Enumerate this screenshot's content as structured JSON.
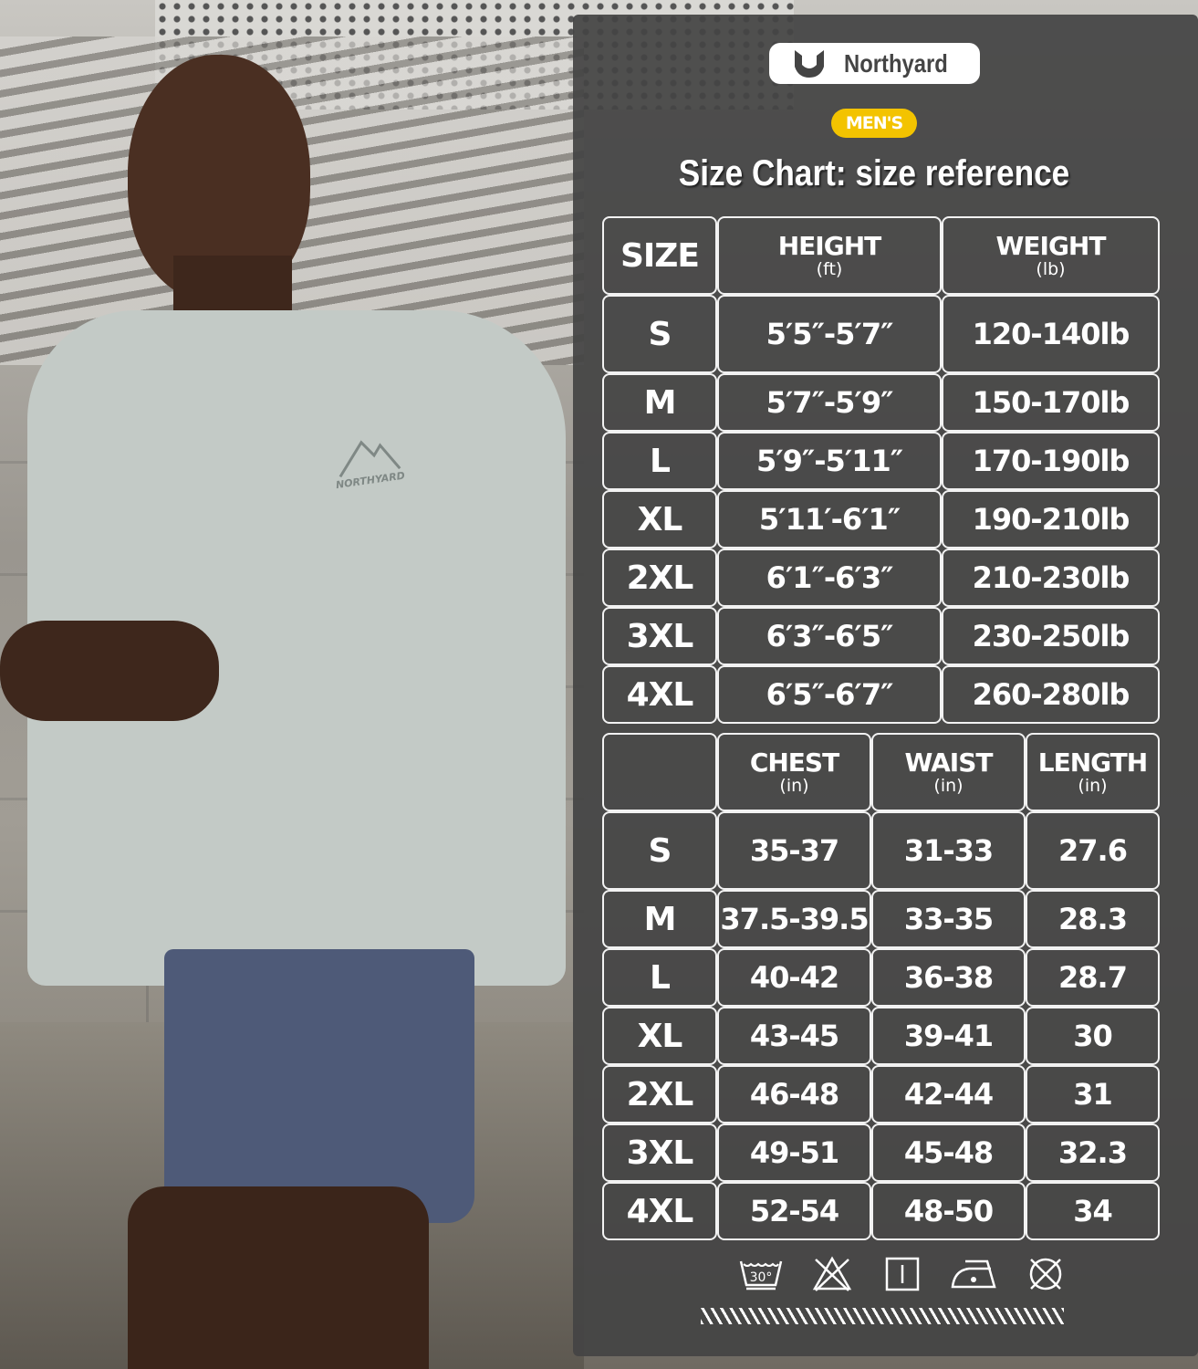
{
  "brand": {
    "name": "Northyard",
    "shirt_logo": "NORTHYARD"
  },
  "badge": "MEN'S",
  "title": "Size Chart: size reference",
  "body_table": {
    "headers": [
      {
        "label": "SIZE",
        "unit": ""
      },
      {
        "label": "HEIGHT",
        "unit": "(ft)"
      },
      {
        "label": "WEIGHT",
        "unit": "(lb)"
      }
    ],
    "rows": [
      [
        "S",
        "5′5″-5′7″",
        "120-140lb"
      ],
      [
        "M",
        "5′7″-5′9″",
        "150-170lb"
      ],
      [
        "L",
        "5′9″-5′11″",
        "170-190lb"
      ],
      [
        "XL",
        "5′11′-6′1″",
        "190-210lb"
      ],
      [
        "2XL",
        "6′1″-6′3″",
        "210-230lb"
      ],
      [
        "3XL",
        "6′3″-6′5″",
        "230-250lb"
      ],
      [
        "4XL",
        "6′5″-6′7″",
        "260-280lb"
      ]
    ]
  },
  "garment_table": {
    "headers": [
      {
        "label": "",
        "unit": ""
      },
      {
        "label": "CHEST",
        "unit": "(in)"
      },
      {
        "label": "WAIST",
        "unit": "(in)"
      },
      {
        "label": "LENGTH",
        "unit": "(in)"
      }
    ],
    "rows": [
      [
        "S",
        "35-37",
        "31-33",
        "27.6"
      ],
      [
        "M",
        "37.5-39.5",
        "33-35",
        "28.3"
      ],
      [
        "L",
        "40-42",
        "36-38",
        "28.7"
      ],
      [
        "XL",
        "43-45",
        "39-41",
        "30"
      ],
      [
        "2XL",
        "46-48",
        "42-44",
        "31"
      ],
      [
        "3XL",
        "49-51",
        "45-48",
        "32.3"
      ],
      [
        "4XL",
        "52-54",
        "48-50",
        "34"
      ]
    ]
  },
  "care_icons": [
    {
      "name": "wash-30-icon",
      "label": "30°"
    },
    {
      "name": "do-not-bleach-icon"
    },
    {
      "name": "drip-dry-icon"
    },
    {
      "name": "iron-low-icon"
    },
    {
      "name": "do-not-dry-clean-icon"
    }
  ],
  "colors": {
    "badge": "#f3c300",
    "panel": "#444444"
  }
}
